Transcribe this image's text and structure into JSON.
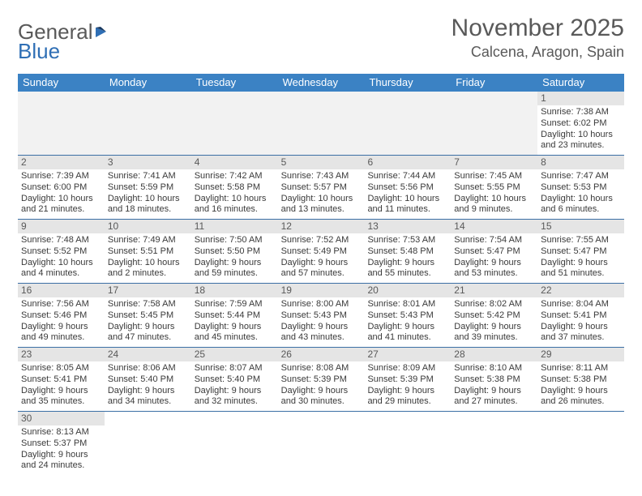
{
  "logo": {
    "text1": "General",
    "text2": "Blue"
  },
  "title": "November 2025",
  "location": "Calcena, Aragon, Spain",
  "colors": {
    "header_bg": "#3b82c4",
    "header_text": "#ffffff",
    "daynum_bg": "#e5e5e5",
    "blank_bg": "#f2f2f2",
    "rule": "#3b6fa5",
    "title_color": "#595959",
    "body_text": "#3a3a3a",
    "logo_gray": "#595959",
    "logo_blue": "#2f6fb5"
  },
  "day_headers": [
    "Sunday",
    "Monday",
    "Tuesday",
    "Wednesday",
    "Thursday",
    "Friday",
    "Saturday"
  ],
  "weeks": [
    [
      null,
      null,
      null,
      null,
      null,
      null,
      {
        "n": "1",
        "sunrise": "Sunrise: 7:38 AM",
        "sunset": "Sunset: 6:02 PM",
        "daylight": "Daylight: 10 hours and 23 minutes."
      }
    ],
    [
      {
        "n": "2",
        "sunrise": "Sunrise: 7:39 AM",
        "sunset": "Sunset: 6:00 PM",
        "daylight": "Daylight: 10 hours and 21 minutes."
      },
      {
        "n": "3",
        "sunrise": "Sunrise: 7:41 AM",
        "sunset": "Sunset: 5:59 PM",
        "daylight": "Daylight: 10 hours and 18 minutes."
      },
      {
        "n": "4",
        "sunrise": "Sunrise: 7:42 AM",
        "sunset": "Sunset: 5:58 PM",
        "daylight": "Daylight: 10 hours and 16 minutes."
      },
      {
        "n": "5",
        "sunrise": "Sunrise: 7:43 AM",
        "sunset": "Sunset: 5:57 PM",
        "daylight": "Daylight: 10 hours and 13 minutes."
      },
      {
        "n": "6",
        "sunrise": "Sunrise: 7:44 AM",
        "sunset": "Sunset: 5:56 PM",
        "daylight": "Daylight: 10 hours and 11 minutes."
      },
      {
        "n": "7",
        "sunrise": "Sunrise: 7:45 AM",
        "sunset": "Sunset: 5:55 PM",
        "daylight": "Daylight: 10 hours and 9 minutes."
      },
      {
        "n": "8",
        "sunrise": "Sunrise: 7:47 AM",
        "sunset": "Sunset: 5:53 PM",
        "daylight": "Daylight: 10 hours and 6 minutes."
      }
    ],
    [
      {
        "n": "9",
        "sunrise": "Sunrise: 7:48 AM",
        "sunset": "Sunset: 5:52 PM",
        "daylight": "Daylight: 10 hours and 4 minutes."
      },
      {
        "n": "10",
        "sunrise": "Sunrise: 7:49 AM",
        "sunset": "Sunset: 5:51 PM",
        "daylight": "Daylight: 10 hours and 2 minutes."
      },
      {
        "n": "11",
        "sunrise": "Sunrise: 7:50 AM",
        "sunset": "Sunset: 5:50 PM",
        "daylight": "Daylight: 9 hours and 59 minutes."
      },
      {
        "n": "12",
        "sunrise": "Sunrise: 7:52 AM",
        "sunset": "Sunset: 5:49 PM",
        "daylight": "Daylight: 9 hours and 57 minutes."
      },
      {
        "n": "13",
        "sunrise": "Sunrise: 7:53 AM",
        "sunset": "Sunset: 5:48 PM",
        "daylight": "Daylight: 9 hours and 55 minutes."
      },
      {
        "n": "14",
        "sunrise": "Sunrise: 7:54 AM",
        "sunset": "Sunset: 5:47 PM",
        "daylight": "Daylight: 9 hours and 53 minutes."
      },
      {
        "n": "15",
        "sunrise": "Sunrise: 7:55 AM",
        "sunset": "Sunset: 5:47 PM",
        "daylight": "Daylight: 9 hours and 51 minutes."
      }
    ],
    [
      {
        "n": "16",
        "sunrise": "Sunrise: 7:56 AM",
        "sunset": "Sunset: 5:46 PM",
        "daylight": "Daylight: 9 hours and 49 minutes."
      },
      {
        "n": "17",
        "sunrise": "Sunrise: 7:58 AM",
        "sunset": "Sunset: 5:45 PM",
        "daylight": "Daylight: 9 hours and 47 minutes."
      },
      {
        "n": "18",
        "sunrise": "Sunrise: 7:59 AM",
        "sunset": "Sunset: 5:44 PM",
        "daylight": "Daylight: 9 hours and 45 minutes."
      },
      {
        "n": "19",
        "sunrise": "Sunrise: 8:00 AM",
        "sunset": "Sunset: 5:43 PM",
        "daylight": "Daylight: 9 hours and 43 minutes."
      },
      {
        "n": "20",
        "sunrise": "Sunrise: 8:01 AM",
        "sunset": "Sunset: 5:43 PM",
        "daylight": "Daylight: 9 hours and 41 minutes."
      },
      {
        "n": "21",
        "sunrise": "Sunrise: 8:02 AM",
        "sunset": "Sunset: 5:42 PM",
        "daylight": "Daylight: 9 hours and 39 minutes."
      },
      {
        "n": "22",
        "sunrise": "Sunrise: 8:04 AM",
        "sunset": "Sunset: 5:41 PM",
        "daylight": "Daylight: 9 hours and 37 minutes."
      }
    ],
    [
      {
        "n": "23",
        "sunrise": "Sunrise: 8:05 AM",
        "sunset": "Sunset: 5:41 PM",
        "daylight": "Daylight: 9 hours and 35 minutes."
      },
      {
        "n": "24",
        "sunrise": "Sunrise: 8:06 AM",
        "sunset": "Sunset: 5:40 PM",
        "daylight": "Daylight: 9 hours and 34 minutes."
      },
      {
        "n": "25",
        "sunrise": "Sunrise: 8:07 AM",
        "sunset": "Sunset: 5:40 PM",
        "daylight": "Daylight: 9 hours and 32 minutes."
      },
      {
        "n": "26",
        "sunrise": "Sunrise: 8:08 AM",
        "sunset": "Sunset: 5:39 PM",
        "daylight": "Daylight: 9 hours and 30 minutes."
      },
      {
        "n": "27",
        "sunrise": "Sunrise: 8:09 AM",
        "sunset": "Sunset: 5:39 PM",
        "daylight": "Daylight: 9 hours and 29 minutes."
      },
      {
        "n": "28",
        "sunrise": "Sunrise: 8:10 AM",
        "sunset": "Sunset: 5:38 PM",
        "daylight": "Daylight: 9 hours and 27 minutes."
      },
      {
        "n": "29",
        "sunrise": "Sunrise: 8:11 AM",
        "sunset": "Sunset: 5:38 PM",
        "daylight": "Daylight: 9 hours and 26 minutes."
      }
    ],
    [
      {
        "n": "30",
        "sunrise": "Sunrise: 8:13 AM",
        "sunset": "Sunset: 5:37 PM",
        "daylight": "Daylight: 9 hours and 24 minutes."
      },
      null,
      null,
      null,
      null,
      null,
      null
    ]
  ]
}
